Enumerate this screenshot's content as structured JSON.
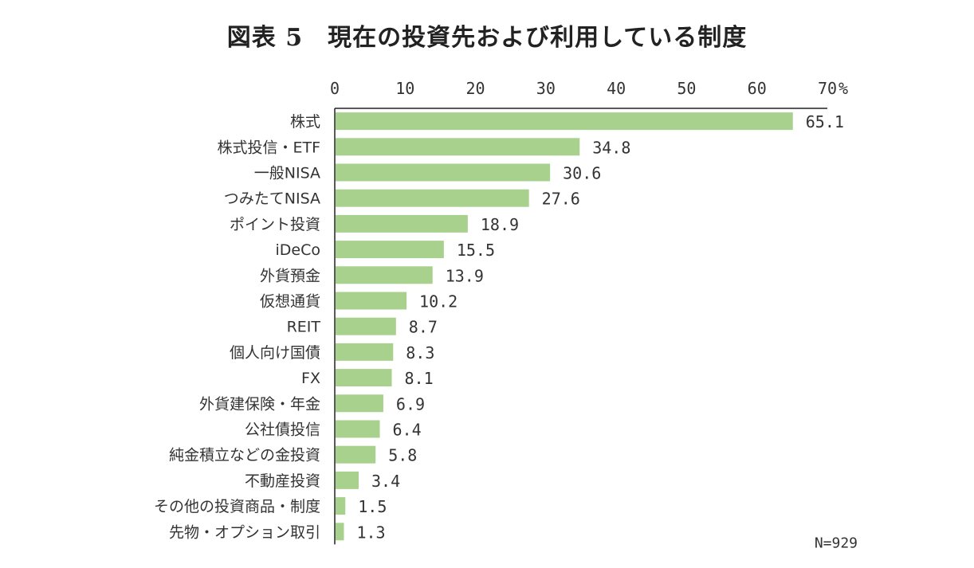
{
  "chart_data": {
    "type": "bar",
    "orientation": "horizontal",
    "title": "図表 5　現在の投資先および利用している制度",
    "unit_label": "%",
    "xlim": [
      0,
      70
    ],
    "x_ticks": [
      0,
      10,
      20,
      30,
      40,
      50,
      60,
      70
    ],
    "tick_labels": [
      "0",
      "10",
      "20",
      "30",
      "40",
      "50",
      "60",
      "70"
    ],
    "categories": [
      "株式",
      "株式投信・ETF",
      "一般NISA",
      "つみたてNISA",
      "ポイント投資",
      "iDeCo",
      "外貨預金",
      "仮想通貨",
      "REIT",
      "個人向け国債",
      "FX",
      "外貨建保険・年金",
      "公社債投信",
      "純金積立などの金投資",
      "不動産投資",
      "その他の投資商品・制度",
      "先物・オプション取引"
    ],
    "values": [
      65.1,
      34.8,
      30.6,
      27.6,
      18.9,
      15.5,
      13.9,
      10.2,
      8.7,
      8.3,
      8.1,
      6.9,
      6.4,
      5.8,
      3.4,
      1.5,
      1.3
    ],
    "value_labels": [
      "65.1",
      "34.8",
      "30.6",
      "27.6",
      "18.9",
      "15.5",
      "13.9",
      "10.2",
      "8.7",
      "8.3",
      "8.1",
      "6.9",
      "6.4",
      "5.8",
      "3.4",
      "1.5",
      "1.3"
    ],
    "bar_color": "#a8d18d",
    "note": "N=929",
    "legend": "none",
    "grid": false
  }
}
